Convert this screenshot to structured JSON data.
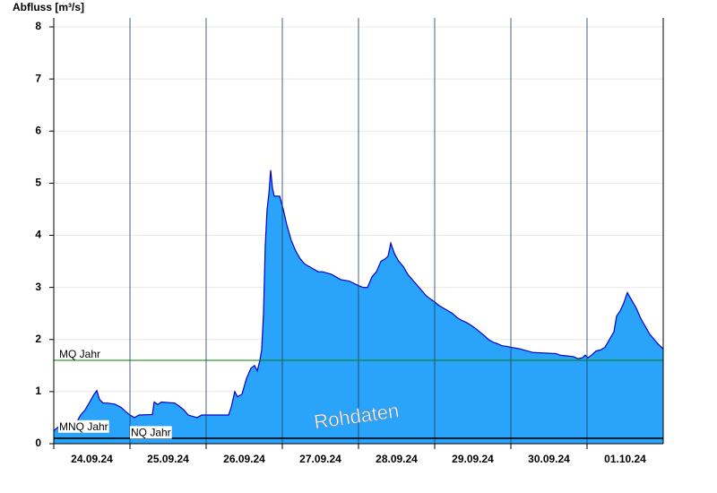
{
  "chart_data": {
    "type": "area",
    "y_label": "Abfluss [m³/s]",
    "watermark": "Rohdaten",
    "xlim": [
      0,
      8
    ],
    "xticks": [
      {
        "value": 0.5,
        "label": "24.09.24"
      },
      {
        "value": 1.5,
        "label": "25.09.24"
      },
      {
        "value": 2.5,
        "label": "26.09.24"
      },
      {
        "value": 3.5,
        "label": "27.09.24"
      },
      {
        "value": 4.5,
        "label": "28.09.24"
      },
      {
        "value": 5.5,
        "label": "29.09.24"
      },
      {
        "value": 6.5,
        "label": "30.09.24"
      },
      {
        "value": 7.5,
        "label": "01.10.24"
      }
    ],
    "ylim": [
      0,
      8
    ],
    "yticks": [
      0,
      1,
      2,
      3,
      4,
      5,
      6,
      7,
      8
    ],
    "grid": true,
    "color": "#2aa4fb",
    "line_color": "#0000cc",
    "x": [
      0,
      0.059,
      0.176,
      0.235,
      0.294,
      0.353,
      0.412,
      0.471,
      0.529,
      0.565,
      0.6,
      0.647,
      0.706,
      0.8,
      0.882,
      0.941,
      1.0,
      1.059,
      1.118,
      1.294,
      1.318,
      1.365,
      1.412,
      1.588,
      1.647,
      1.706,
      1.765,
      1.882,
      1.941,
      2.294,
      2.329,
      2.376,
      2.412,
      2.471,
      2.529,
      2.588,
      2.635,
      2.671,
      2.706,
      2.729,
      2.753,
      2.776,
      2.8,
      2.824,
      2.847,
      2.871,
      2.894,
      2.965,
      3.012,
      3.059,
      3.118,
      3.176,
      3.235,
      3.294,
      3.353,
      3.412,
      3.471,
      3.529,
      3.647,
      3.765,
      3.882,
      3.976,
      4.059,
      4.118,
      4.176,
      4.235,
      4.294,
      4.353,
      4.388,
      4.424,
      4.471,
      4.529,
      4.588,
      4.647,
      4.706,
      4.765,
      4.824,
      4.882,
      4.941,
      5.0,
      5.059,
      5.118,
      5.176,
      5.235,
      5.294,
      5.353,
      5.412,
      5.471,
      5.529,
      5.588,
      5.647,
      5.706,
      5.765,
      5.824,
      5.882,
      5.941,
      6.0,
      6.118,
      6.294,
      6.588,
      6.647,
      6.824,
      6.882,
      6.941,
      6.976,
      7.012,
      7.059,
      7.118,
      7.176,
      7.235,
      7.294,
      7.353,
      7.388,
      7.435,
      7.482,
      7.529,
      7.588,
      7.647,
      7.706,
      7.765,
      7.824,
      7.882,
      7.941,
      8.0
    ],
    "values": [
      0.25,
      0.32,
      0.33,
      0.36,
      0.4,
      0.55,
      0.65,
      0.8,
      0.95,
      1.02,
      0.85,
      0.78,
      0.78,
      0.76,
      0.7,
      0.62,
      0.55,
      0.5,
      0.55,
      0.56,
      0.8,
      0.75,
      0.8,
      0.78,
      0.72,
      0.65,
      0.55,
      0.5,
      0.55,
      0.55,
      0.7,
      1.0,
      0.9,
      0.95,
      1.25,
      1.45,
      1.5,
      1.4,
      1.6,
      1.8,
      2.5,
      3.8,
      4.5,
      4.8,
      5.25,
      4.9,
      4.75,
      4.75,
      4.5,
      4.2,
      3.9,
      3.7,
      3.55,
      3.45,
      3.4,
      3.35,
      3.3,
      3.3,
      3.25,
      3.15,
      3.12,
      3.05,
      3.0,
      3.0,
      3.2,
      3.3,
      3.5,
      3.55,
      3.6,
      3.85,
      3.65,
      3.5,
      3.4,
      3.25,
      3.15,
      3.05,
      2.95,
      2.85,
      2.78,
      2.72,
      2.65,
      2.6,
      2.55,
      2.5,
      2.42,
      2.37,
      2.33,
      2.28,
      2.22,
      2.15,
      2.08,
      2.0,
      1.95,
      1.92,
      1.88,
      1.87,
      1.85,
      1.82,
      1.75,
      1.73,
      1.7,
      1.67,
      1.63,
      1.65,
      1.7,
      1.65,
      1.7,
      1.78,
      1.8,
      1.85,
      2.0,
      2.15,
      2.45,
      2.55,
      2.7,
      2.9,
      2.75,
      2.6,
      2.4,
      2.25,
      2.1,
      2.0,
      1.9,
      1.82
    ],
    "reference_lines": [
      {
        "label": "MQ Jahr",
        "value": 1.6,
        "color": "#008000"
      },
      {
        "label": "MNQ Jahr",
        "value": 0.11,
        "color": "#000000"
      },
      {
        "label": "NQ Jahr",
        "value": 0.1,
        "color": "#000000"
      }
    ]
  }
}
